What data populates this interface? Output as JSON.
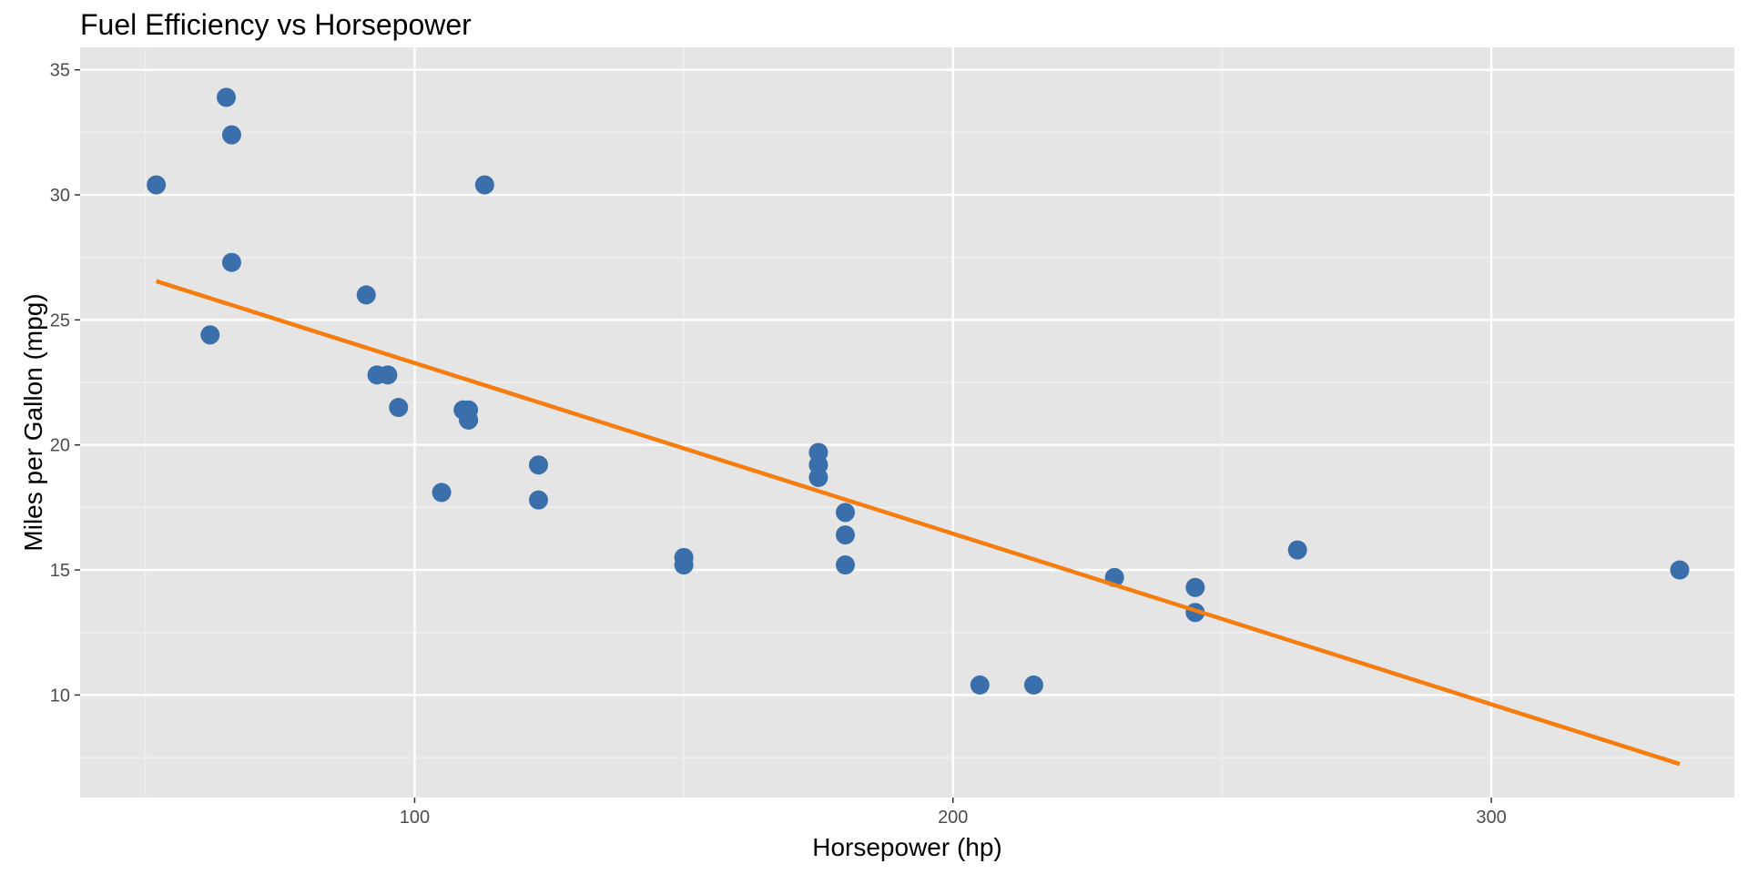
{
  "chart_data": {
    "type": "scatter",
    "title": "Fuel Efficiency vs Horsepower",
    "xlabel": "Horsepower (hp)",
    "ylabel": "Miles per Gallon (mpg)",
    "xlim": [
      37.85,
      345.15
    ],
    "ylim": [
      5.9,
      35.9
    ],
    "x_ticks": [
      100,
      200,
      300
    ],
    "y_ticks": [
      10,
      15,
      20,
      25,
      30,
      35
    ],
    "grid": true,
    "legend": "none",
    "colors": {
      "panel_background": "#e5e5e5",
      "grid_major": "#ffffff",
      "grid_minor": "#f2f2f2",
      "points": "#3a6fab",
      "trend_line": "#f57c0e",
      "tick_text": "#4d4d4d"
    },
    "series": [
      {
        "type": "scatter",
        "x": [
          110,
          110,
          93,
          110,
          175,
          105,
          245,
          62,
          95,
          123,
          123,
          180,
          180,
          180,
          205,
          215,
          230,
          66,
          52,
          65,
          97,
          150,
          150,
          245,
          175,
          66,
          91,
          113,
          264,
          175,
          335,
          109
        ],
        "y": [
          21.0,
          21.0,
          22.8,
          21.4,
          18.7,
          18.1,
          14.3,
          24.4,
          22.8,
          19.2,
          17.8,
          16.4,
          17.3,
          15.2,
          10.4,
          10.4,
          14.7,
          32.4,
          30.4,
          33.9,
          21.5,
          15.5,
          15.2,
          13.3,
          19.2,
          27.3,
          26.0,
          30.4,
          15.8,
          19.7,
          15.0,
          21.4
        ]
      },
      {
        "type": "line",
        "x": [
          52,
          335
        ],
        "y": [
          26.55,
          7.24
        ]
      }
    ]
  }
}
